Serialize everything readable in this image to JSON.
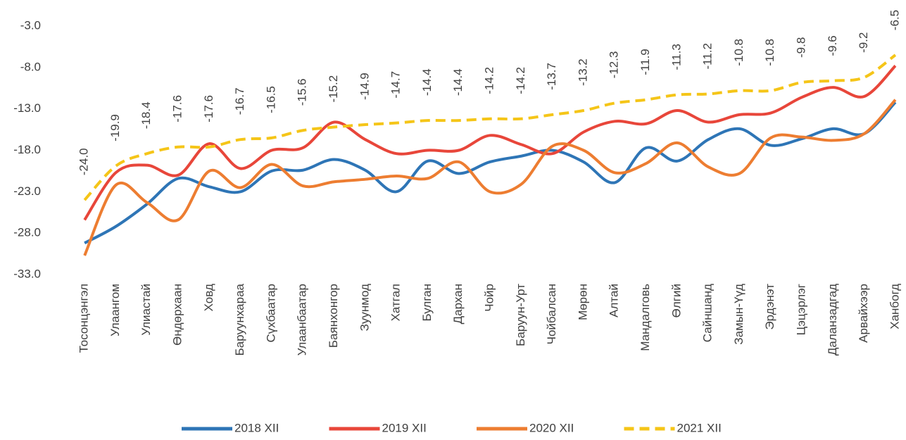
{
  "chart_data": {
    "type": "line",
    "categories": [
      "Тосонцэнгэл",
      "Улаангом",
      "Улиастай",
      "Өндөрхаан",
      "Ховд",
      "Баруунхараа",
      "Сүхбаатар",
      "Улаанбаатар",
      "Баянхонгор",
      "Зуунмод",
      "Хатгал",
      "Булган",
      "Дархан",
      "Чойр",
      "Баруун-Урт",
      "Чойбалсан",
      "Мөрөн",
      "Алтай",
      "Мандалговь",
      "Өлгий",
      "Сайншанд",
      "Замын-Үүд",
      "Эрдэнэт",
      "Цэцэрлэг",
      "Даланзадгад",
      "Арвайхээр",
      "Ханбогд"
    ],
    "series": [
      {
        "name": "2018 XII",
        "color": "#2e75b6",
        "values": [
          -29.2,
          -27.2,
          -24.5,
          -21.4,
          -22.4,
          -23.0,
          -20.5,
          -20.4,
          -19.1,
          -20.4,
          -23.0,
          -19.3,
          -20.8,
          -19.4,
          -18.7,
          -18.0,
          -19.4,
          -21.9,
          -17.7,
          -19.3,
          -16.7,
          -15.4,
          -17.4,
          -16.6,
          -15.4,
          -16.0,
          -12.2
        ]
      },
      {
        "name": "2019 XII",
        "color": "#e8463a",
        "values": [
          -26.4,
          -20.7,
          -19.8,
          -21.0,
          -17.2,
          -20.2,
          -18.0,
          -17.7,
          -14.6,
          -16.7,
          -18.4,
          -18.0,
          -18.0,
          -16.2,
          -17.3,
          -18.4,
          -15.8,
          -14.5,
          -14.8,
          -13.2,
          -14.6,
          -13.7,
          -13.5,
          -11.6,
          -10.4,
          -11.5,
          -7.8
        ]
      },
      {
        "name": "2020 XII",
        "color": "#ed7d31",
        "values": [
          -30.7,
          -22.2,
          -24.3,
          -26.4,
          -20.5,
          -22.5,
          -19.7,
          -22.3,
          -21.8,
          -21.5,
          -21.1,
          -21.4,
          -19.4,
          -23.0,
          -22.1,
          -17.5,
          -18.0,
          -20.7,
          -19.6,
          -17.1,
          -20.0,
          -20.8,
          -16.5,
          -16.4,
          -16.8,
          -16.0,
          -11.9
        ]
      },
      {
        "name": "2021 XII",
        "color": "#f5c518",
        "dashed": true,
        "values": [
          -24.0,
          -19.9,
          -18.4,
          -17.6,
          -17.6,
          -16.7,
          -16.5,
          -15.6,
          -15.2,
          -14.9,
          -14.7,
          -14.4,
          -14.4,
          -14.2,
          -14.2,
          -13.7,
          -13.2,
          -12.3,
          -11.9,
          -11.3,
          -11.2,
          -10.8,
          -10.8,
          -9.8,
          -9.6,
          -9.2,
          -6.5
        ],
        "value_labels": [
          "-24.0",
          "-19.9",
          "-18.4",
          "-17.6",
          "-17.6",
          "-16.7",
          "-16.5",
          "-15.6",
          "-15.2",
          "-14.9",
          "-14.7",
          "-14.4",
          "-14.4",
          "-14.2",
          "-14.2",
          "-13.7",
          "-13.2",
          "-12.3",
          "-11.9",
          "-11.3",
          "-11.2",
          "-10.8",
          "-10.8",
          "-9.8",
          "-9.6",
          "-9.2",
          "-6.5"
        ]
      }
    ],
    "ylim": [
      -33,
      -3
    ],
    "yticks": [
      {
        "value": -33,
        "label": "-33.0"
      },
      {
        "value": -28,
        "label": "-28.0"
      },
      {
        "value": -23,
        "label": "-23.0"
      },
      {
        "value": -18,
        "label": "-18.0"
      },
      {
        "value": -13,
        "label": "-13.0"
      },
      {
        "value": -8,
        "label": "-8.0"
      },
      {
        "value": -3,
        "label": "-3.0"
      }
    ],
    "legend": "bottom"
  }
}
